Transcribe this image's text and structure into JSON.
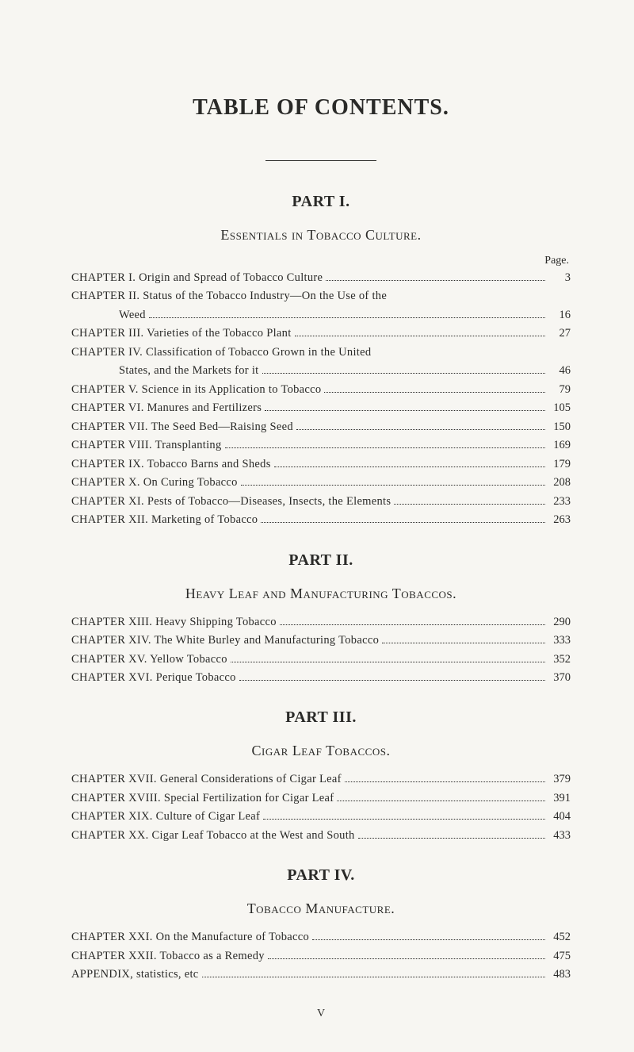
{
  "mainTitle": "TABLE OF CONTENTS.",
  "pageLabel": "Page.",
  "footer": "V",
  "colors": {
    "background": "#f7f6f2",
    "text": "#2a2a28"
  },
  "parts": [
    {
      "partTitle": "PART I.",
      "sectionTitle": "Essentials in Tobacco Culture.",
      "showPageLabel": true,
      "entries": [
        {
          "text": "CHAPTER I.  Origin and Spread of Tobacco Culture",
          "page": "3"
        },
        {
          "text": "CHAPTER II.  Status of the Tobacco Industry—On the Use of the",
          "page": "",
          "noDots": true
        },
        {
          "text": "Weed",
          "page": "16",
          "continuation": true
        },
        {
          "text": "CHAPTER III.  Varieties of the Tobacco Plant",
          "page": "27"
        },
        {
          "text": "CHAPTER IV.  Classification of Tobacco Grown in the United",
          "page": "",
          "noDots": true
        },
        {
          "text": "States, and the Markets for it",
          "page": "46",
          "continuation": true
        },
        {
          "text": "CHAPTER V.  Science in its Application to Tobacco",
          "page": "79"
        },
        {
          "text": "CHAPTER VI.  Manures and Fertilizers",
          "page": "105"
        },
        {
          "text": "CHAPTER VII.  The Seed Bed—Raising Seed",
          "page": "150"
        },
        {
          "text": "CHAPTER VIII.  Transplanting",
          "page": "169"
        },
        {
          "text": "CHAPTER IX.  Tobacco Barns and Sheds",
          "page": "179"
        },
        {
          "text": "CHAPTER X.  On Curing Tobacco",
          "page": "208"
        },
        {
          "text": "CHAPTER XI.  Pests of Tobacco—Diseases, Insects, the Elements",
          "page": "233"
        },
        {
          "text": "CHAPTER XII.  Marketing of Tobacco",
          "page": "263"
        }
      ]
    },
    {
      "partTitle": "PART II.",
      "sectionTitle": "Heavy Leaf and Manufacturing Tobaccos.",
      "entries": [
        {
          "text": "CHAPTER XIII.  Heavy Shipping Tobacco",
          "page": "290"
        },
        {
          "text": "CHAPTER XIV.  The White Burley and Manufacturing Tobacco",
          "page": "333"
        },
        {
          "text": "CHAPTER XV.  Yellow Tobacco",
          "page": "352"
        },
        {
          "text": "CHAPTER XVI.  Perique Tobacco",
          "page": "370"
        }
      ]
    },
    {
      "partTitle": "PART III.",
      "sectionTitle": "Cigar Leaf Tobaccos.",
      "entries": [
        {
          "text": "CHAPTER XVII.  General Considerations of Cigar Leaf",
          "page": "379"
        },
        {
          "text": "CHAPTER XVIII.  Special Fertilization for Cigar Leaf",
          "page": "391"
        },
        {
          "text": "CHAPTER XIX.  Culture of Cigar Leaf",
          "page": "404"
        },
        {
          "text": "CHAPTER XX.  Cigar Leaf Tobacco at the West and South",
          "page": "433"
        }
      ]
    },
    {
      "partTitle": "PART IV.",
      "sectionTitle": "Tobacco Manufacture.",
      "entries": [
        {
          "text": "CHAPTER XXI.  On the Manufacture of Tobacco",
          "page": "452"
        },
        {
          "text": "CHAPTER XXII.  Tobacco as a Remedy",
          "page": "475"
        },
        {
          "text": "APPENDIX, statistics, etc",
          "page": "483"
        }
      ]
    }
  ]
}
